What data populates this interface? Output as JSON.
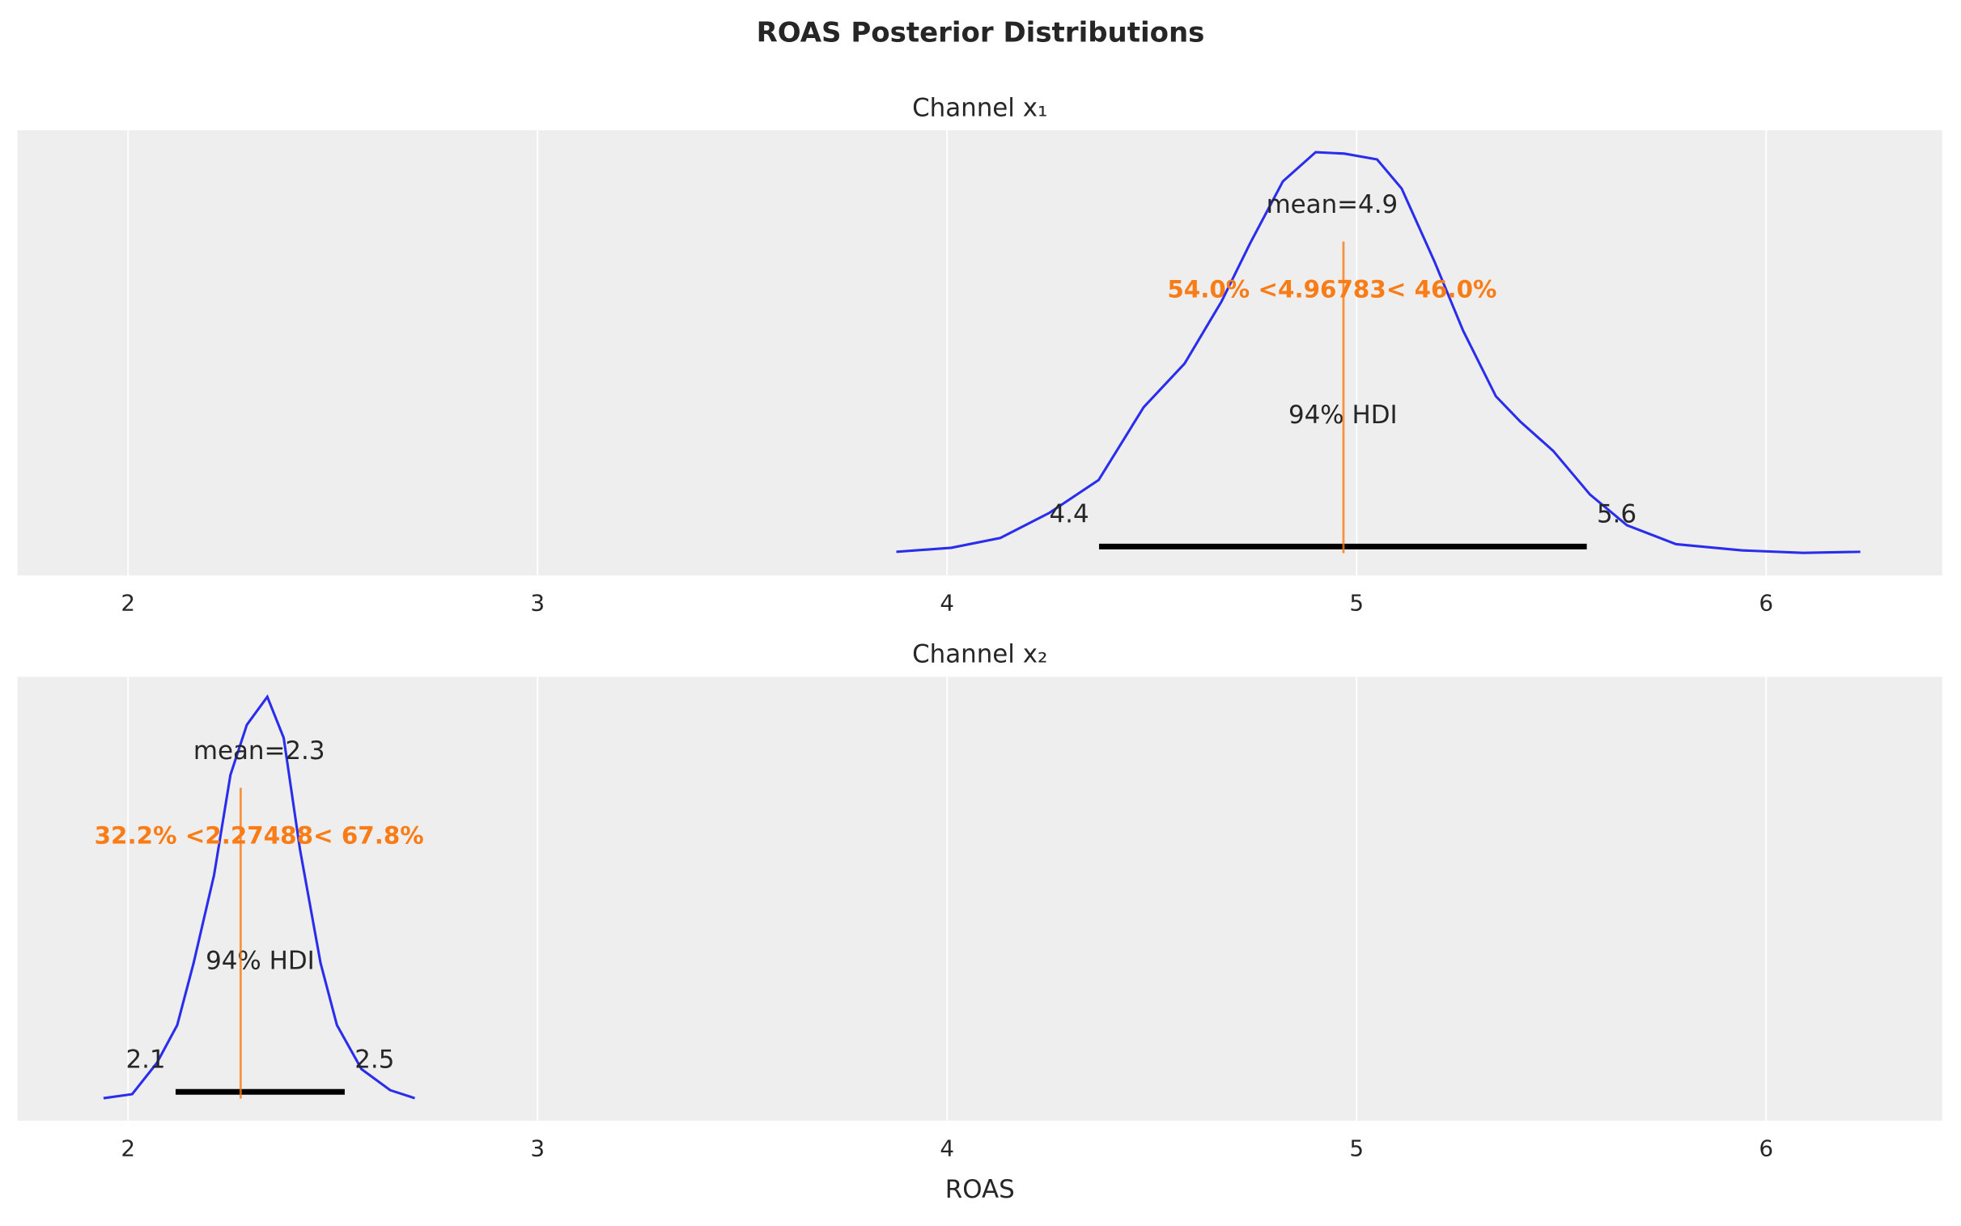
{
  "title": "ROAS Posterior Distributions",
  "chart_data": [
    {
      "type": "density",
      "title": "Channel x₁",
      "color": "#2a2eec",
      "grid": true,
      "xlim": [
        1.73,
        6.43
      ],
      "ylim": [
        -0.062,
        1.16
      ],
      "xticks": [
        2,
        3,
        4,
        5,
        6
      ],
      "x": [
        3.876,
        4.01,
        4.13,
        4.25,
        4.37,
        4.48,
        4.58,
        4.67,
        4.74,
        4.82,
        4.9,
        4.97,
        5.05,
        5.11,
        5.19,
        5.26,
        5.34,
        5.4,
        5.48,
        5.57,
        5.66,
        5.78,
        5.94,
        6.09,
        6.23
      ],
      "values": [
        0.003,
        0.014,
        0.041,
        0.11,
        0.2,
        0.4,
        0.52,
        0.69,
        0.85,
        1.02,
        1.1,
        1.096,
        1.08,
        1.0,
        0.8,
        0.61,
        0.43,
        0.36,
        0.28,
        0.16,
        0.076,
        0.024,
        0.007,
        0.0,
        0.003
      ],
      "mean": {
        "value": 4.94,
        "label": "mean=4.9"
      },
      "ref_line": {
        "value": 4.96783,
        "label": "54.0% <4.96783< 46.0%",
        "color": "#fa7c17"
      },
      "hdi": [
        4.371,
        5.562
      ],
      "hdi_labels": [
        "4.4",
        "5.6"
      ],
      "hdi_title": "94% HDI"
    },
    {
      "type": "density",
      "title": "Channel x₂",
      "color": "#2a2eec",
      "grid": true,
      "xlabel": "ROAS",
      "xlim": [
        1.73,
        6.43
      ],
      "ylim": [
        -0.225,
        4.21
      ],
      "xticks": [
        2,
        3,
        4,
        5,
        6
      ],
      "x": [
        1.94,
        2.01,
        2.07,
        2.12,
        2.16,
        2.21,
        2.25,
        2.29,
        2.34,
        2.38,
        2.42,
        2.47,
        2.51,
        2.57,
        2.64,
        2.7
      ],
      "values": [
        0.0,
        0.04,
        0.35,
        0.73,
        1.35,
        2.23,
        3.23,
        3.73,
        4.01,
        3.6,
        2.48,
        1.35,
        0.73,
        0.29,
        0.08,
        0.0
      ],
      "mean": {
        "value": 2.32,
        "label": "mean=2.3"
      },
      "ref_line": {
        "value": 2.27488,
        "label": "32.2% <2.27488< 67.8%",
        "color": "#fa7c17"
      },
      "hdi": [
        2.116,
        2.529
      ],
      "hdi_labels": [
        "2.1",
        "2.5"
      ],
      "hdi_title": "94% HDI"
    }
  ]
}
